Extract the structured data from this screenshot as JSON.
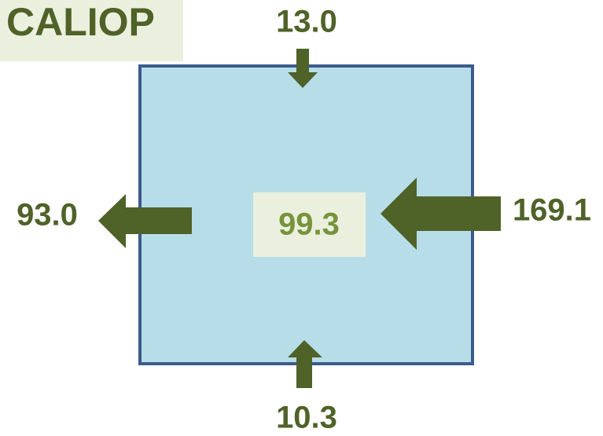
{
  "title": "CALIOP",
  "center": {
    "value": "99.3"
  },
  "fluxes": {
    "top": "13.0",
    "left": "93.0",
    "right": "169.1",
    "bottom": "10.3"
  }
}
